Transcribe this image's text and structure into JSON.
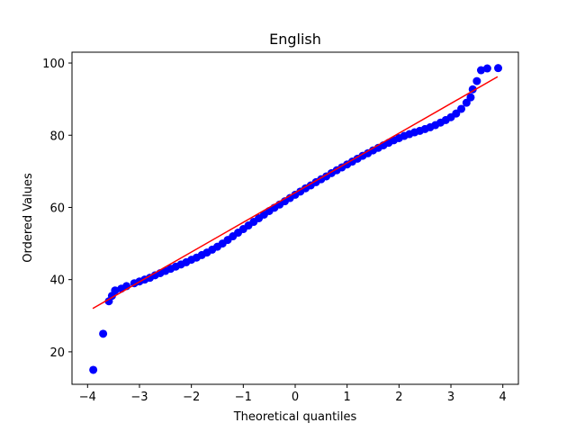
{
  "chart_data": {
    "type": "scatter",
    "title": "English",
    "xlabel": "Theoretical quantiles",
    "ylabel": "Ordered Values",
    "xlim": [
      -4.3,
      4.3
    ],
    "ylim": [
      11,
      103
    ],
    "xticks": [
      -4,
      -3,
      -2,
      -1,
      0,
      1,
      2,
      3,
      4
    ],
    "yticks": [
      20,
      40,
      60,
      80,
      100
    ],
    "grid": false,
    "series": [
      {
        "type": "scatter",
        "color": "#0000ff",
        "points": [
          [
            -3.89,
            15
          ],
          [
            -3.7,
            25
          ],
          [
            -3.59,
            34
          ],
          [
            -3.53,
            35.5
          ],
          [
            -3.47,
            37
          ],
          [
            -3.35,
            37.5
          ],
          [
            -3.25,
            38.2
          ],
          [
            -3.1,
            39
          ],
          [
            -3.0,
            39.5
          ],
          [
            -2.9,
            40
          ],
          [
            -2.8,
            40.5
          ],
          [
            -2.7,
            41.2
          ],
          [
            -2.6,
            41.8
          ],
          [
            -2.5,
            42.4
          ],
          [
            -2.4,
            43
          ],
          [
            -2.3,
            43.6
          ],
          [
            -2.2,
            44.2
          ],
          [
            -2.1,
            44.8
          ],
          [
            -2.0,
            45.5
          ],
          [
            -1.9,
            46.1
          ],
          [
            -1.8,
            46.8
          ],
          [
            -1.7,
            47.5
          ],
          [
            -1.6,
            48.3
          ],
          [
            -1.5,
            49.1
          ],
          [
            -1.4,
            50
          ],
          [
            -1.3,
            51
          ],
          [
            -1.2,
            52
          ],
          [
            -1.1,
            53
          ],
          [
            -1.0,
            54
          ],
          [
            -0.9,
            55
          ],
          [
            -0.8,
            56
          ],
          [
            -0.7,
            57
          ],
          [
            -0.6,
            58
          ],
          [
            -0.5,
            59
          ],
          [
            -0.4,
            59.9
          ],
          [
            -0.3,
            60.8
          ],
          [
            -0.2,
            61.7
          ],
          [
            -0.1,
            62.6
          ],
          [
            0.0,
            63.5
          ],
          [
            0.1,
            64.4
          ],
          [
            0.2,
            65.3
          ],
          [
            0.3,
            66.1
          ],
          [
            0.4,
            67
          ],
          [
            0.5,
            67.8
          ],
          [
            0.6,
            68.6
          ],
          [
            0.7,
            69.5
          ],
          [
            0.8,
            70.3
          ],
          [
            0.9,
            71.1
          ],
          [
            1.0,
            71.9
          ],
          [
            1.1,
            72.7
          ],
          [
            1.2,
            73.5
          ],
          [
            1.3,
            74.3
          ],
          [
            1.4,
            75
          ],
          [
            1.5,
            75.8
          ],
          [
            1.6,
            76.5
          ],
          [
            1.7,
            77.2
          ],
          [
            1.8,
            77.9
          ],
          [
            1.9,
            78.6
          ],
          [
            2.0,
            79.2
          ],
          [
            2.1,
            79.8
          ],
          [
            2.2,
            80.3
          ],
          [
            2.3,
            80.8
          ],
          [
            2.4,
            81.2
          ],
          [
            2.5,
            81.7
          ],
          [
            2.6,
            82.2
          ],
          [
            2.7,
            82.8
          ],
          [
            2.8,
            83.5
          ],
          [
            2.9,
            84.2
          ],
          [
            3.0,
            85
          ],
          [
            3.1,
            86
          ],
          [
            3.2,
            87.3
          ],
          [
            3.3,
            89
          ],
          [
            3.38,
            90.5
          ],
          [
            3.42,
            92.7
          ],
          [
            3.5,
            95
          ],
          [
            3.58,
            98
          ],
          [
            3.7,
            98.5
          ],
          [
            3.91,
            98.6
          ]
        ]
      },
      {
        "type": "line",
        "color": "#ff0000",
        "points": [
          [
            -3.9,
            32
          ],
          [
            3.9,
            96.2
          ]
        ]
      }
    ]
  }
}
